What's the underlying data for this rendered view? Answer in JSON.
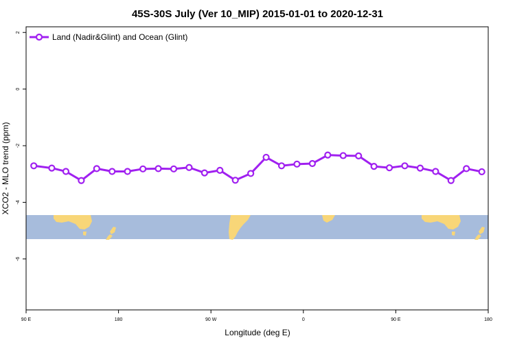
{
  "chart_data": {
    "type": "line",
    "title": "45S-30S July (Ver 10_MIP)   2015-01-01 to 2020-12-31",
    "xlabel": "Longitude (deg E)",
    "ylabel": "XCO2 - MLO trend (ppm)",
    "xlim": [
      90,
      450
    ],
    "ylim": [
      -7.8,
      2.2
    ],
    "x_ticks": [
      {
        "value": 90,
        "label": "90 E"
      },
      {
        "value": 162,
        "label": "180"
      },
      {
        "value": 234,
        "label": "90 W"
      },
      {
        "value": 306,
        "label": "0"
      },
      {
        "value": 378,
        "label": "90 E"
      },
      {
        "value": 450,
        "label": "180"
      }
    ],
    "y_ticks": [
      {
        "value": 2,
        "label": "2"
      },
      {
        "value": 0,
        "label": "0"
      },
      {
        "value": -2,
        "label": "-2"
      },
      {
        "value": -4,
        "label": "-4"
      },
      {
        "value": -6,
        "label": "-6"
      }
    ],
    "legend_position": "top-left",
    "grid": false,
    "series": [
      {
        "name": "Land (Nadir&Glint) and Ocean (Glint)",
        "color": "#a020f0",
        "x": [
          96,
          110,
          121,
          133,
          145,
          157,
          169,
          181,
          193,
          205,
          217,
          229,
          241,
          253,
          265,
          277,
          289,
          301,
          313,
          325,
          337,
          349,
          361,
          373,
          385,
          397,
          409,
          421,
          433,
          445
        ],
        "y": [
          -2.71,
          -2.79,
          -2.91,
          -3.23,
          -2.81,
          -2.91,
          -2.91,
          -2.82,
          -2.81,
          -2.82,
          -2.77,
          -2.96,
          -2.87,
          -3.22,
          -2.98,
          -2.41,
          -2.71,
          -2.65,
          -2.63,
          -2.33,
          -2.35,
          -2.36,
          -2.73,
          -2.78,
          -2.71,
          -2.79,
          -2.91,
          -3.23,
          -2.81,
          -2.92
        ]
      }
    ],
    "map_strip": {
      "ocean_color": "#a7bcdc",
      "land_color": "#f8d678"
    }
  }
}
